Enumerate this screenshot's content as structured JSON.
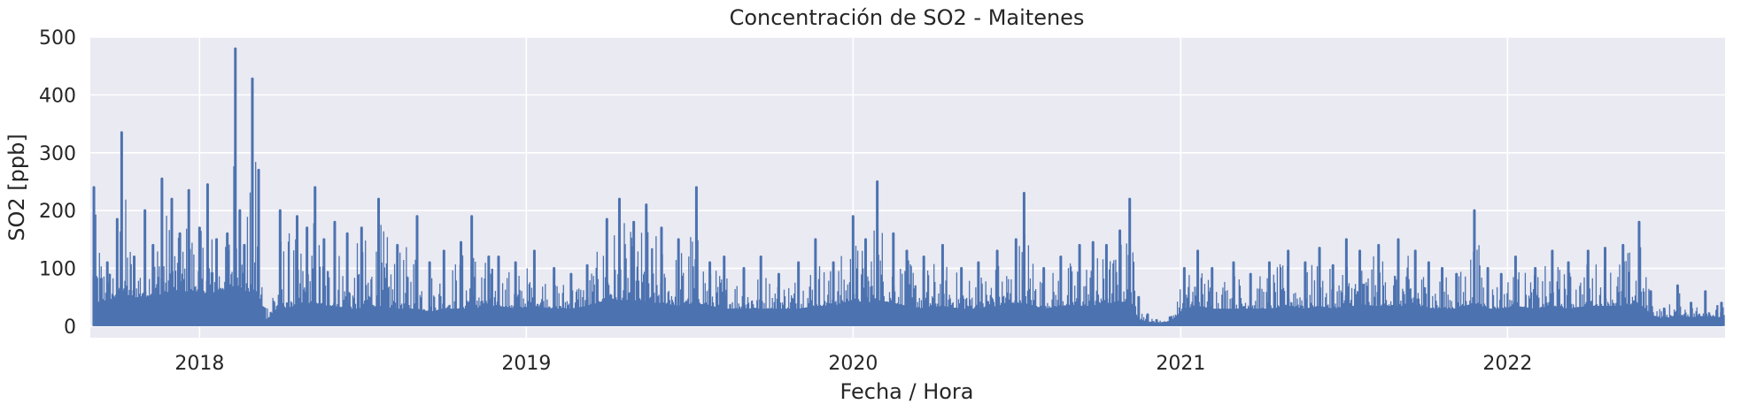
{
  "chart_data": {
    "type": "line",
    "title": "Concentración de SO2 - Maitenes",
    "xlabel": "Fecha / Hora",
    "ylabel": "SO2 [ppb]",
    "xlim": [
      "2017-09-01",
      "2022-09-01"
    ],
    "ylim": [
      -20,
      500
    ],
    "xticks": [
      "2018-01-01",
      "2019-01-01",
      "2020-01-01",
      "2021-01-01",
      "2022-01-01"
    ],
    "xtick_labels": [
      "2018",
      "2019",
      "2020",
      "2021",
      "2022"
    ],
    "yticks": [
      0,
      100,
      200,
      300,
      400,
      500
    ],
    "grid": true,
    "legend": "none",
    "colors": {
      "line": "#4c72b0",
      "background": "#eaeaf2",
      "grid": "#ffffff"
    },
    "series": [
      {
        "x": [
          "2017-09-05",
          "2017-09-20",
          "2017-10-01",
          "2017-10-06",
          "2017-10-20",
          "2017-11-01",
          "2017-11-10",
          "2017-11-20",
          "2017-12-01",
          "2017-12-10",
          "2017-12-20",
          "2018-01-01",
          "2018-01-10",
          "2018-01-20",
          "2018-02-01",
          "2018-02-10",
          "2018-02-15",
          "2018-02-20",
          "2018-03-01",
          "2018-03-08",
          "2018-03-15",
          "2018-04-01",
          "2018-04-20",
          "2018-05-01",
          "2018-05-10",
          "2018-05-20",
          "2018-06-01",
          "2018-06-15",
          "2018-07-01",
          "2018-07-20",
          "2018-08-10",
          "2018-09-01",
          "2018-09-15",
          "2018-10-01",
          "2018-10-20",
          "2018-11-01",
          "2018-11-20",
          "2018-12-01",
          "2018-12-20",
          "2019-01-10",
          "2019-02-01",
          "2019-02-20",
          "2019-03-10",
          "2019-04-01",
          "2019-04-15",
          "2019-05-01",
          "2019-05-15",
          "2019-06-01",
          "2019-06-20",
          "2019-07-10",
          "2019-07-25",
          "2019-08-10",
          "2019-09-01",
          "2019-09-20",
          "2019-10-10",
          "2019-11-01",
          "2019-11-20",
          "2019-12-10",
          "2020-01-01",
          "2020-01-15",
          "2020-01-28",
          "2020-02-15",
          "2020-03-01",
          "2020-03-20",
          "2020-04-10",
          "2020-05-01",
          "2020-05-20",
          "2020-06-10",
          "2020-07-01",
          "2020-07-10",
          "2020-08-01",
          "2020-08-20",
          "2020-09-10",
          "2020-09-25",
          "2020-10-10",
          "2020-10-25",
          "2020-11-05",
          "2020-11-15",
          "2020-11-25",
          "2020-12-05",
          "2020-12-20",
          "2021-01-05",
          "2021-01-20",
          "2021-02-05",
          "2021-03-01",
          "2021-03-20",
          "2021-04-10",
          "2021-05-01",
          "2021-05-20",
          "2021-06-05",
          "2021-06-20",
          "2021-07-05",
          "2021-07-20",
          "2021-08-10",
          "2021-09-01",
          "2021-09-20",
          "2021-10-05",
          "2021-10-20",
          "2021-11-05",
          "2021-11-25",
          "2021-12-10",
          "2021-12-25",
          "2022-01-10",
          "2022-02-01",
          "2022-02-20",
          "2022-03-10",
          "2022-04-01",
          "2022-04-20",
          "2022-05-10",
          "2022-05-28",
          "2022-06-10",
          "2022-06-25",
          "2022-07-10",
          "2022-07-25",
          "2022-08-10",
          "2022-08-28"
        ],
        "y": [
          240,
          110,
          185,
          335,
          120,
          200,
          140,
          255,
          220,
          160,
          235,
          170,
          245,
          150,
          160,
          480,
          200,
          140,
          428,
          270,
          30,
          200,
          190,
          170,
          240,
          150,
          180,
          160,
          170,
          220,
          140,
          190,
          110,
          130,
          145,
          190,
          120,
          120,
          110,
          130,
          100,
          90,
          105,
          185,
          220,
          180,
          210,
          170,
          150,
          240,
          110,
          120,
          100,
          120,
          90,
          110,
          150,
          110,
          190,
          150,
          250,
          160,
          130,
          120,
          140,
          100,
          110,
          130,
          150,
          230,
          100,
          120,
          140,
          145,
          140,
          165,
          220,
          50,
          20,
          10,
          15,
          100,
          130,
          100,
          110,
          90,
          110,
          130,
          110,
          135,
          105,
          150,
          130,
          140,
          150,
          130,
          110,
          100,
          90,
          200,
          100,
          90,
          120,
          100,
          130,
          110,
          130,
          135,
          140,
          180,
          60,
          30,
          70,
          40,
          60,
          40
        ],
        "baseline": [
          40,
          45,
          50,
          55,
          50,
          50,
          55,
          55,
          60,
          60,
          60,
          60,
          55,
          60,
          65,
          70,
          70,
          60,
          60,
          55,
          10,
          30,
          35,
          40,
          40,
          35,
          35,
          30,
          30,
          35,
          30,
          30,
          25,
          30,
          30,
          30,
          35,
          35,
          30,
          35,
          30,
          30,
          35,
          45,
          45,
          45,
          40,
          40,
          35,
          40,
          35,
          30,
          30,
          30,
          30,
          30,
          35,
          35,
          45,
          40,
          45,
          40,
          35,
          30,
          35,
          30,
          30,
          35,
          40,
          40,
          30,
          35,
          35,
          35,
          40,
          40,
          45,
          12,
          8,
          6,
          8,
          30,
          35,
          30,
          30,
          30,
          30,
          35,
          30,
          35,
          30,
          35,
          35,
          35,
          35,
          35,
          30,
          30,
          30,
          40,
          30,
          30,
          35,
          30,
          35,
          30,
          35,
          35,
          35,
          40,
          20,
          12,
          20,
          15,
          18,
          15
        ]
      }
    ]
  }
}
